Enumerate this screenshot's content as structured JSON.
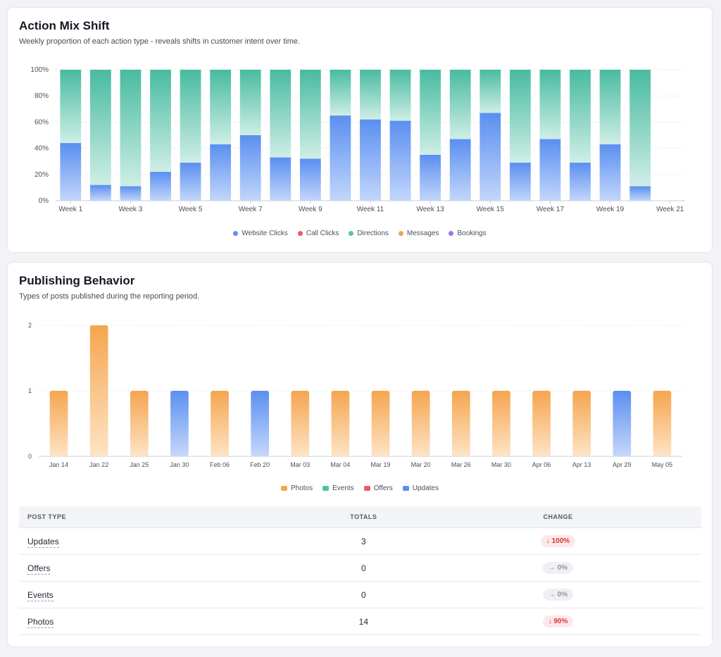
{
  "mix": {
    "title": "Action Mix Shift",
    "subtitle": "Weekly proportion of each action type - reveals shifts in customer intent over time.",
    "legend": [
      {
        "label": "Website Clicks",
        "color": "#5a8ff0"
      },
      {
        "label": "Call Clicks",
        "color": "#f2566a"
      },
      {
        "label": "Directions",
        "color": "#58c2a6"
      },
      {
        "label": "Messages",
        "color": "#f4a24a"
      },
      {
        "label": "Bookings",
        "color": "#9b74e6"
      }
    ]
  },
  "publishing": {
    "title": "Publishing Behavior",
    "subtitle": "Types of posts published during the reporting period.",
    "legend": [
      {
        "label": "Photos",
        "color": "#f6a54f"
      },
      {
        "label": "Events",
        "color": "#4ec0a5"
      },
      {
        "label": "Offers",
        "color": "#f2566a"
      },
      {
        "label": "Updates",
        "color": "#5b8ff0"
      }
    ],
    "table": {
      "headers": [
        "POST TYPE",
        "TOTALS",
        "CHANGE"
      ],
      "rows": [
        {
          "type": "Updates",
          "total": "3",
          "change": "↓ 100%",
          "trend": "down"
        },
        {
          "type": "Offers",
          "total": "0",
          "change": "→ 0%",
          "trend": "flat"
        },
        {
          "type": "Events",
          "total": "0",
          "change": "→ 0%",
          "trend": "flat"
        },
        {
          "type": "Photos",
          "total": "14",
          "change": "↓ 90%",
          "trend": "down"
        }
      ]
    }
  },
  "chart_data": [
    {
      "type": "bar",
      "stacked": true,
      "percent": true,
      "categories": [
        "Week 1",
        "Week 2",
        "Week 3",
        "Week 4",
        "Week 5",
        "Week 6",
        "Week 7",
        "Week 8",
        "Week 9",
        "Week 10",
        "Week 11",
        "Week 12",
        "Week 13",
        "Week 14",
        "Week 15",
        "Week 16",
        "Week 17",
        "Week 18",
        "Week 19",
        "Week 20",
        "Week 21"
      ],
      "tick_labels": [
        "Week 1",
        "Week 3",
        "Week 5",
        "Week 7",
        "Week 9",
        "Week 11",
        "Week 13",
        "Week 15",
        "Week 17",
        "Week 19",
        "Week 21"
      ],
      "yticks": [
        "0%",
        "20%",
        "40%",
        "60%",
        "80%",
        "100%"
      ],
      "ylim": [
        0,
        100
      ],
      "series": [
        {
          "name": "Website Clicks",
          "values": [
            44,
            12,
            11,
            22,
            29,
            43,
            50,
            33,
            32,
            65,
            62,
            61,
            35,
            47,
            67,
            29,
            47,
            29,
            43,
            11,
            null
          ]
        },
        {
          "name": "Call Clicks",
          "values": [
            0,
            0,
            0,
            0,
            0,
            0,
            0,
            0,
            0,
            0,
            0,
            0,
            0,
            0,
            0,
            0,
            0,
            0,
            0,
            0,
            null
          ]
        },
        {
          "name": "Directions",
          "values": [
            56,
            88,
            89,
            78,
            71,
            57,
            50,
            67,
            68,
            35,
            38,
            39,
            65,
            53,
            33,
            71,
            53,
            71,
            57,
            89,
            null
          ]
        },
        {
          "name": "Messages",
          "values": [
            0,
            0,
            0,
            0,
            0,
            0,
            0,
            0,
            0,
            0,
            0,
            0,
            0,
            0,
            0,
            0,
            0,
            0,
            0,
            0,
            null
          ]
        },
        {
          "name": "Bookings",
          "values": [
            0,
            0,
            0,
            0,
            0,
            0,
            0,
            0,
            0,
            0,
            0,
            0,
            0,
            0,
            0,
            0,
            0,
            0,
            0,
            0,
            null
          ]
        }
      ],
      "grid": true,
      "legend_position": "bottom"
    },
    {
      "type": "bar",
      "categories": [
        "Jan 14",
        "Jan 22",
        "Jan 25",
        "Jan 30",
        "Feb 06",
        "Feb 20",
        "Mar 03",
        "Mar 04",
        "Mar 19",
        "Mar 20",
        "Mar 26",
        "Mar 30",
        "Apr 06",
        "Apr 13",
        "Apr 29",
        "May 05"
      ],
      "series": [
        {
          "name": "Photos",
          "values": [
            1,
            2,
            1,
            0,
            1,
            0,
            1,
            1,
            1,
            1,
            1,
            1,
            1,
            1,
            0,
            1
          ]
        },
        {
          "name": "Events",
          "values": [
            0,
            0,
            0,
            0,
            0,
            0,
            0,
            0,
            0,
            0,
            0,
            0,
            0,
            0,
            0,
            0
          ]
        },
        {
          "name": "Offers",
          "values": [
            0,
            0,
            0,
            0,
            0,
            0,
            0,
            0,
            0,
            0,
            0,
            0,
            0,
            0,
            0,
            0
          ]
        },
        {
          "name": "Updates",
          "values": [
            0,
            0,
            0,
            1,
            0,
            1,
            0,
            0,
            0,
            0,
            0,
            0,
            0,
            0,
            1,
            0
          ]
        }
      ],
      "yticks": [
        "0",
        "1",
        "2"
      ],
      "ylim": [
        0,
        2
      ],
      "grid": true,
      "legend_position": "bottom"
    }
  ]
}
